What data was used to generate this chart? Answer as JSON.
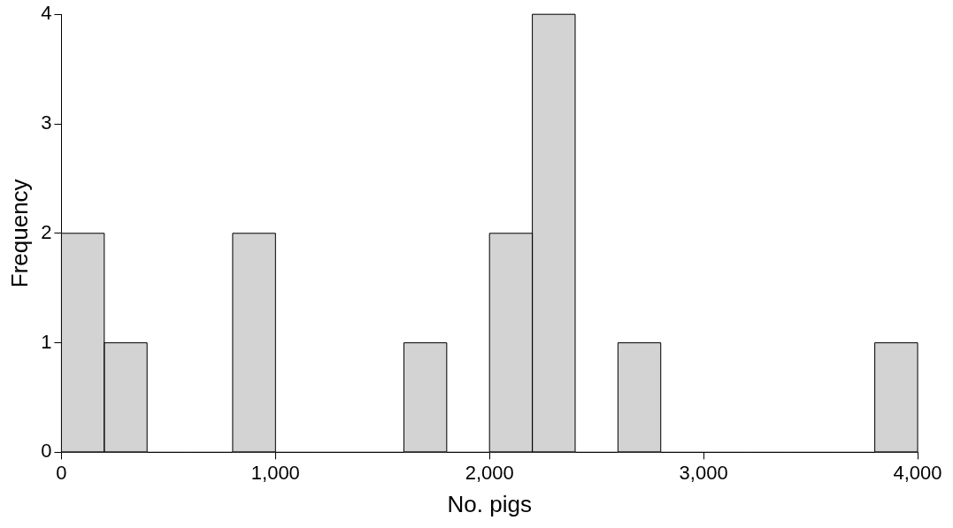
{
  "chart_data": {
    "type": "histogram",
    "xlabel": "No. pigs",
    "ylabel": "Frequency",
    "bins": [
      0,
      200,
      400,
      600,
      800,
      1000,
      1200,
      1400,
      1600,
      1800,
      2000,
      2200,
      2400,
      2600,
      2800,
      3000,
      3200,
      3400,
      3600,
      3800,
      4000
    ],
    "values": [
      2,
      1,
      0,
      0,
      2,
      0,
      0,
      0,
      1,
      0,
      2,
      4,
      0,
      1,
      0,
      0,
      0,
      0,
      0,
      1
    ],
    "color": "#d3d3d3",
    "xlim": [
      0,
      4000
    ],
    "xticks": [
      0,
      {
        "value": 1000,
        "label": "1,000"
      },
      {
        "value": 2000,
        "label": "2,000"
      },
      {
        "value": 3000,
        "label": "3,000"
      },
      {
        "value": 4000,
        "label": "4,000"
      }
    ],
    "ylim": [
      0,
      4
    ],
    "yticks": [
      0,
      1,
      2,
      3,
      4
    ],
    "grid": false
  }
}
